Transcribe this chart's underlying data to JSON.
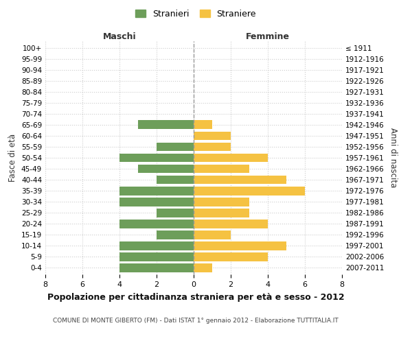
{
  "age_groups": [
    "100+",
    "95-99",
    "90-94",
    "85-89",
    "80-84",
    "75-79",
    "70-74",
    "65-69",
    "60-64",
    "55-59",
    "50-54",
    "45-49",
    "40-44",
    "35-39",
    "30-34",
    "25-29",
    "20-24",
    "15-19",
    "10-14",
    "5-9",
    "0-4"
  ],
  "birth_years": [
    "≤ 1911",
    "1912-1916",
    "1917-1921",
    "1922-1926",
    "1927-1931",
    "1932-1936",
    "1937-1941",
    "1942-1946",
    "1947-1951",
    "1952-1956",
    "1957-1961",
    "1962-1966",
    "1967-1971",
    "1972-1976",
    "1977-1981",
    "1982-1986",
    "1987-1991",
    "1992-1996",
    "1997-2001",
    "2002-2006",
    "2007-2011"
  ],
  "maschi": [
    0,
    0,
    0,
    0,
    0,
    0,
    0,
    3,
    0,
    2,
    4,
    3,
    2,
    4,
    4,
    2,
    4,
    2,
    4,
    4,
    4
  ],
  "femmine": [
    0,
    0,
    0,
    0,
    0,
    0,
    0,
    1,
    2,
    2,
    4,
    3,
    5,
    6,
    3,
    3,
    4,
    2,
    5,
    4,
    1
  ],
  "maschi_color": "#6d9e5a",
  "femmine_color": "#f5c242",
  "title": "Popolazione per cittadinanza straniera per età e sesso - 2012",
  "subtitle": "COMUNE DI MONTE GIBERTO (FM) - Dati ISTAT 1° gennaio 2012 - Elaborazione TUTTITALIA.IT",
  "left_label": "Maschi",
  "right_label": "Femmine",
  "ylabel_left": "Fasce di età",
  "ylabel_right": "Anni di nascita",
  "legend_maschi": "Stranieri",
  "legend_femmine": "Straniere",
  "xlim": 8,
  "background_color": "#ffffff",
  "grid_color": "#cccccc",
  "bar_height": 0.8
}
